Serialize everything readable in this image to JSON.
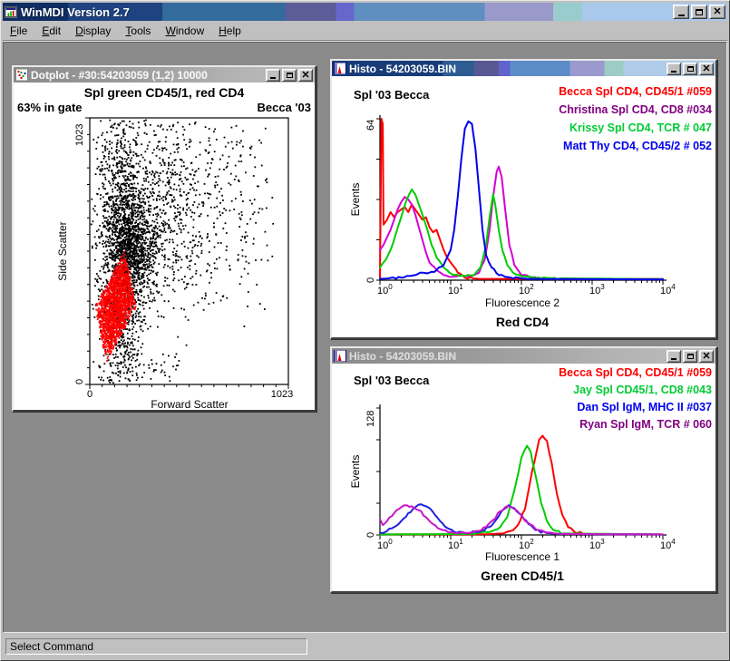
{
  "window": {
    "title": "WinMDI Version 2.7"
  },
  "menu": {
    "items": [
      {
        "label": "File"
      },
      {
        "label": "Edit"
      },
      {
        "label": "Display"
      },
      {
        "label": "Tools"
      },
      {
        "label": "Window"
      },
      {
        "label": "Help"
      }
    ]
  },
  "status": {
    "text": "Select Command"
  },
  "mdi": {
    "dotplot": {
      "title": "Dotplot - #30:54203059 (1,2) 10000",
      "header": "Spl green CD45/1, red CD4",
      "gate_label": "63% in gate",
      "annotation": "Becca '03",
      "xlabel": "Forward Scatter",
      "ylabel": "Side Scatter",
      "xmin": "0",
      "xmax": "1023",
      "ymin": "0",
      "ymax": "1023"
    },
    "histo1": {
      "title": "Histo - 54203059.BIN",
      "sample": "Spl '03 Becca",
      "legend": [
        {
          "label": "Becca Spl CD4, CD45/1 #059",
          "color": "#ff0000"
        },
        {
          "label": "Christina Spl CD4, CD8 #034",
          "color": "#800080"
        },
        {
          "label": "Krissy Spl CD4, TCR # 047",
          "color": "#00cc33"
        },
        {
          "label": "Matt Thy CD4, CD45/2 # 052",
          "color": "#0000ee"
        }
      ],
      "xlabel": "Fluorescence 2",
      "ylabel": "Events",
      "caption": "Red CD4",
      "ymax": "64",
      "ymin": "0"
    },
    "histo2": {
      "title": "Histo - 54203059.BIN",
      "sample": "Spl '03 Becca",
      "legend": [
        {
          "label": "Becca Spl CD4, CD45/1 #059",
          "color": "#ff0000"
        },
        {
          "label": "Jay Spl CD45/1, CD8 #043",
          "color": "#00cc33"
        },
        {
          "label": "Dan Spl IgM, MHC II #037",
          "color": "#0000ee"
        },
        {
          "label": "Ryan Spl IgM, TCR # 060",
          "color": "#800080"
        }
      ],
      "xlabel": "Fluorescence 1",
      "ylabel": "Events",
      "caption": "Green CD45/1",
      "ymax": "128",
      "ymin": "0"
    }
  },
  "chart_data": [
    {
      "type": "scatter",
      "title": "Spl green CD45/1, red CD4",
      "xlabel": "Forward Scatter",
      "ylabel": "Side Scatter",
      "xrange": [
        0,
        1023
      ],
      "yrange": [
        0,
        1023
      ],
      "note": "10000 events; 63% in red gate; normalized cluster parameters (x right, y down)",
      "clusters": [
        {
          "name": "main-band",
          "color": "#000000",
          "n": 1500,
          "cx": 0.16,
          "cy": 0.5,
          "sx": 0.055,
          "sy": 0.27
        },
        {
          "name": "dense-mid",
          "color": "#000000",
          "n": 800,
          "cx": 0.22,
          "cy": 0.48,
          "sx": 0.065,
          "sy": 0.09
        },
        {
          "name": "mid-spread",
          "color": "#000000",
          "n": 700,
          "cx": 0.36,
          "cy": 0.33,
          "sx": 0.17,
          "sy": 0.2
        },
        {
          "name": "sparse",
          "color": "#000000",
          "n": 300,
          "uniform": true,
          "x0": 0.02,
          "x1": 0.92,
          "y0": 0.01,
          "y1": 0.72
        },
        {
          "name": "bottom-sparse",
          "color": "#000000",
          "n": 70,
          "uniform": true,
          "x0": 0.03,
          "x1": 0.45,
          "y0": 0.88,
          "y1": 0.985
        },
        {
          "name": "gate",
          "color": "#ff0000",
          "n": 1700,
          "cx": 0.125,
          "cy": 0.705,
          "sx": 0.055,
          "sy": 0.115,
          "diamond": [
            0.105,
            0.21
          ],
          "shear": -0.22
        }
      ]
    },
    {
      "type": "line",
      "title": "Red CD4",
      "xlabel": "Fluorescence 2",
      "ylabel": "Events",
      "x_scale": "log10",
      "decades": [
        0,
        1,
        2,
        3,
        4
      ],
      "ylim": [
        0,
        64
      ],
      "series": [
        {
          "name": "Becca Spl CD4, CD45/1 #059",
          "color": "#ff0000",
          "points": [
            [
              0,
              1
            ],
            [
              0.02,
              64
            ],
            [
              0.04,
              62
            ],
            [
              0.05,
              22
            ],
            [
              0.1,
              24
            ],
            [
              0.15,
              27
            ],
            [
              0.2,
              25
            ],
            [
              0.25,
              27
            ],
            [
              0.3,
              28
            ],
            [
              0.35,
              29
            ],
            [
              0.4,
              27
            ],
            [
              0.45,
              30
            ],
            [
              0.5,
              28
            ],
            [
              0.55,
              26
            ],
            [
              0.6,
              24
            ],
            [
              0.65,
              25
            ],
            [
              0.7,
              21
            ],
            [
              0.75,
              19
            ],
            [
              0.8,
              20
            ],
            [
              0.85,
              16
            ],
            [
              0.9,
              12
            ],
            [
              0.95,
              9
            ],
            [
              1.0,
              7
            ],
            [
              1.1,
              3
            ],
            [
              1.2,
              1
            ],
            [
              1.4,
              0.5
            ],
            [
              4,
              0.5
            ]
          ]
        },
        {
          "name": "Christina Spl CD4, CD8 #034",
          "color": "#d400d4",
          "points": [
            [
              0,
              12
            ],
            [
              0.05,
              14
            ],
            [
              0.1,
              17
            ],
            [
              0.15,
              20
            ],
            [
              0.2,
              24
            ],
            [
              0.25,
              28
            ],
            [
              0.3,
              31
            ],
            [
              0.35,
              33
            ],
            [
              0.4,
              32
            ],
            [
              0.45,
              30
            ],
            [
              0.5,
              26
            ],
            [
              0.55,
              21
            ],
            [
              0.6,
              16
            ],
            [
              0.65,
              11
            ],
            [
              0.7,
              7
            ],
            [
              0.8,
              4
            ],
            [
              0.9,
              2
            ],
            [
              1.05,
              1.5
            ],
            [
              1.25,
              1.5
            ],
            [
              1.4,
              3
            ],
            [
              1.48,
              8
            ],
            [
              1.55,
              20
            ],
            [
              1.6,
              33
            ],
            [
              1.65,
              43
            ],
            [
              1.68,
              45
            ],
            [
              1.72,
              41
            ],
            [
              1.77,
              28
            ],
            [
              1.83,
              14
            ],
            [
              1.9,
              6
            ],
            [
              2.0,
              2
            ],
            [
              2.15,
              1
            ],
            [
              2.4,
              0.5
            ],
            [
              4,
              0.4
            ]
          ]
        },
        {
          "name": "Krissy Spl CD4, TCR # 047",
          "color": "#00cc00",
          "points": [
            [
              0,
              5
            ],
            [
              0.08,
              8
            ],
            [
              0.15,
              12
            ],
            [
              0.22,
              18
            ],
            [
              0.3,
              25
            ],
            [
              0.38,
              32
            ],
            [
              0.45,
              36
            ],
            [
              0.5,
              34
            ],
            [
              0.55,
              30
            ],
            [
              0.6,
              26
            ],
            [
              0.67,
              20
            ],
            [
              0.73,
              14
            ],
            [
              0.8,
              9
            ],
            [
              0.88,
              6
            ],
            [
              0.95,
              4
            ],
            [
              1.05,
              2
            ],
            [
              1.2,
              1.5
            ],
            [
              1.33,
              2
            ],
            [
              1.42,
              5
            ],
            [
              1.5,
              14
            ],
            [
              1.55,
              25
            ],
            [
              1.6,
              34
            ],
            [
              1.63,
              30
            ],
            [
              1.68,
              20
            ],
            [
              1.73,
              12
            ],
            [
              1.8,
              6
            ],
            [
              1.88,
              3
            ],
            [
              2.0,
              1.5
            ],
            [
              2.2,
              0.8
            ],
            [
              4,
              0.4
            ]
          ]
        },
        {
          "name": "Matt Thy CD4, CD45/2 # 052",
          "color": "#0000f0",
          "points": [
            [
              0,
              0.5
            ],
            [
              0.3,
              1
            ],
            [
              0.5,
              2
            ],
            [
              0.6,
              3
            ],
            [
              0.7,
              3
            ],
            [
              0.8,
              4
            ],
            [
              0.9,
              6
            ],
            [
              1.0,
              12
            ],
            [
              1.05,
              20
            ],
            [
              1.1,
              33
            ],
            [
              1.15,
              48
            ],
            [
              1.2,
              60
            ],
            [
              1.25,
              63
            ],
            [
              1.3,
              62
            ],
            [
              1.35,
              52
            ],
            [
              1.4,
              36
            ],
            [
              1.45,
              20
            ],
            [
              1.5,
              10
            ],
            [
              1.58,
              5
            ],
            [
              1.68,
              2
            ],
            [
              1.85,
              1
            ],
            [
              2.1,
              0.5
            ],
            [
              4,
              0.3
            ]
          ]
        }
      ]
    },
    {
      "type": "line",
      "title": "Green CD45/1",
      "xlabel": "Fluorescence 1",
      "ylabel": "Events",
      "x_scale": "log10",
      "decades": [
        0,
        1,
        2,
        3,
        4
      ],
      "ylim": [
        0,
        128
      ],
      "series": [
        {
          "name": "Becca Spl CD4, CD45/1 #059",
          "color": "#ff0000",
          "points": [
            [
              0,
              0.5
            ],
            [
              1.5,
              0.6
            ],
            [
              1.7,
              1.5
            ],
            [
              1.85,
              4
            ],
            [
              1.95,
              10
            ],
            [
              2.05,
              26
            ],
            [
              2.15,
              64
            ],
            [
              2.25,
              96
            ],
            [
              2.3,
              100
            ],
            [
              2.36,
              95
            ],
            [
              2.43,
              72
            ],
            [
              2.5,
              42
            ],
            [
              2.58,
              20
            ],
            [
              2.66,
              8
            ],
            [
              2.75,
              3
            ],
            [
              2.9,
              1
            ],
            [
              4,
              0.5
            ]
          ]
        },
        {
          "name": "Jay Spl CD45/1, CD8 #043",
          "color": "#00cc00",
          "points": [
            [
              0,
              0.5
            ],
            [
              1.3,
              1
            ],
            [
              1.55,
              3
            ],
            [
              1.7,
              8
            ],
            [
              1.8,
              18
            ],
            [
              1.9,
              45
            ],
            [
              2.0,
              78
            ],
            [
              2.08,
              90
            ],
            [
              2.13,
              84
            ],
            [
              2.2,
              60
            ],
            [
              2.28,
              32
            ],
            [
              2.36,
              14
            ],
            [
              2.45,
              5
            ],
            [
              2.6,
              1.5
            ],
            [
              4,
              0.5
            ]
          ]
        },
        {
          "name": "Dan Spl IgM, MHC II #037",
          "color": "#2020e0",
          "points": [
            [
              0,
              2
            ],
            [
              0.1,
              4
            ],
            [
              0.2,
              8
            ],
            [
              0.3,
              14
            ],
            [
              0.4,
              22
            ],
            [
              0.5,
              28
            ],
            [
              0.58,
              31
            ],
            [
              0.65,
              29
            ],
            [
              0.75,
              23
            ],
            [
              0.85,
              14
            ],
            [
              0.95,
              7
            ],
            [
              1.05,
              3
            ],
            [
              1.2,
              2
            ],
            [
              1.4,
              3
            ],
            [
              1.55,
              8
            ],
            [
              1.65,
              16
            ],
            [
              1.75,
              26
            ],
            [
              1.82,
              30
            ],
            [
              1.9,
              27
            ],
            [
              2.0,
              20
            ],
            [
              2.1,
              11
            ],
            [
              2.2,
              5
            ],
            [
              2.35,
              2
            ],
            [
              2.55,
              1
            ],
            [
              4,
              0.5
            ]
          ]
        },
        {
          "name": "Ryan Spl IgM, TCR # 060",
          "color": "#c816c8",
          "points": [
            [
              0,
              16
            ],
            [
              0.04,
              10
            ],
            [
              0.1,
              14
            ],
            [
              0.2,
              22
            ],
            [
              0.3,
              28
            ],
            [
              0.38,
              30
            ],
            [
              0.45,
              29
            ],
            [
              0.55,
              25
            ],
            [
              0.65,
              18
            ],
            [
              0.75,
              11
            ],
            [
              0.85,
              6
            ],
            [
              1.0,
              3
            ],
            [
              1.2,
              2
            ],
            [
              1.4,
              4
            ],
            [
              1.5,
              8
            ],
            [
              1.6,
              15
            ],
            [
              1.7,
              24
            ],
            [
              1.8,
              29
            ],
            [
              1.88,
              27
            ],
            [
              1.98,
              21
            ],
            [
              2.08,
              13
            ],
            [
              2.2,
              6
            ],
            [
              2.35,
              2.5
            ],
            [
              2.55,
              1
            ],
            [
              4,
              0.5
            ]
          ]
        }
      ]
    }
  ]
}
